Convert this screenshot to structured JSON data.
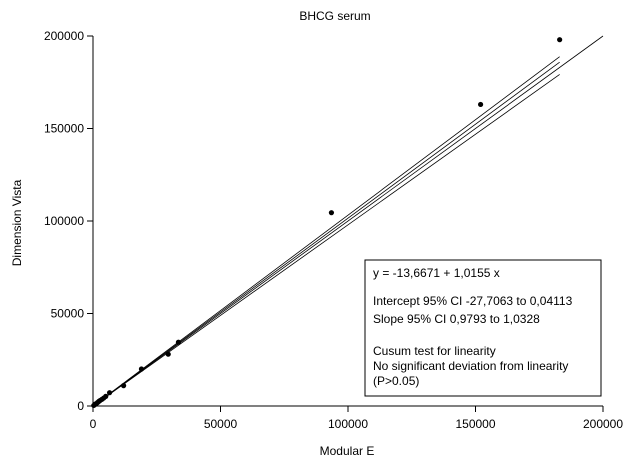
{
  "chart_data": {
    "type": "scatter",
    "title": "BHCG serum",
    "xlabel": "Modular E",
    "ylabel": "Dimension Vista",
    "xlim": [
      0,
      200000
    ],
    "ylim": [
      0,
      200000
    ],
    "x_ticks": [
      0,
      50000,
      100000,
      150000,
      200000
    ],
    "y_ticks": [
      0,
      50000,
      100000,
      150000,
      200000
    ],
    "x_tick_labels": [
      "0",
      "50000",
      "100000",
      "150000",
      "200000"
    ],
    "y_tick_labels": [
      "0",
      "50000",
      "100000",
      "150000",
      "200000"
    ],
    "points": [
      {
        "x": 300,
        "y": 300
      },
      {
        "x": 600,
        "y": 650
      },
      {
        "x": 900,
        "y": 1000
      },
      {
        "x": 1300,
        "y": 1300
      },
      {
        "x": 1800,
        "y": 1900
      },
      {
        "x": 2300,
        "y": 2500
      },
      {
        "x": 2800,
        "y": 3000
      },
      {
        "x": 3500,
        "y": 3600
      },
      {
        "x": 4200,
        "y": 4300
      },
      {
        "x": 5000,
        "y": 5200
      },
      {
        "x": 6500,
        "y": 7200
      },
      {
        "x": 12000,
        "y": 11000
      },
      {
        "x": 19000,
        "y": 20000
      },
      {
        "x": 29500,
        "y": 28000
      },
      {
        "x": 33500,
        "y": 34500
      },
      {
        "x": 93500,
        "y": 104500
      },
      {
        "x": 152000,
        "y": 163000
      },
      {
        "x": 183000,
        "y": 198000
      }
    ],
    "identity_line": {
      "x": [
        0,
        200000
      ],
      "y": [
        0,
        200000
      ]
    },
    "regression": {
      "intercept": -13.6671,
      "slope": 1.0155
    },
    "ci_band": {
      "x_end": 183000,
      "lower_end": 179200,
      "upper_end": 188800
    },
    "stats_box": {
      "equation": "y  = -13,6671  + 1,0155  x",
      "intercept_ci": "Intercept 95% CI -27,7063 to 0,04113",
      "slope_ci": "Slope 95% CI 0,9793 to 1,0328",
      "cusum_title": "Cusum test for linearity",
      "cusum_result": "No significant deviation from linearity",
      "cusum_p": "(P>0.05)"
    },
    "grid": false,
    "legend": "none"
  }
}
